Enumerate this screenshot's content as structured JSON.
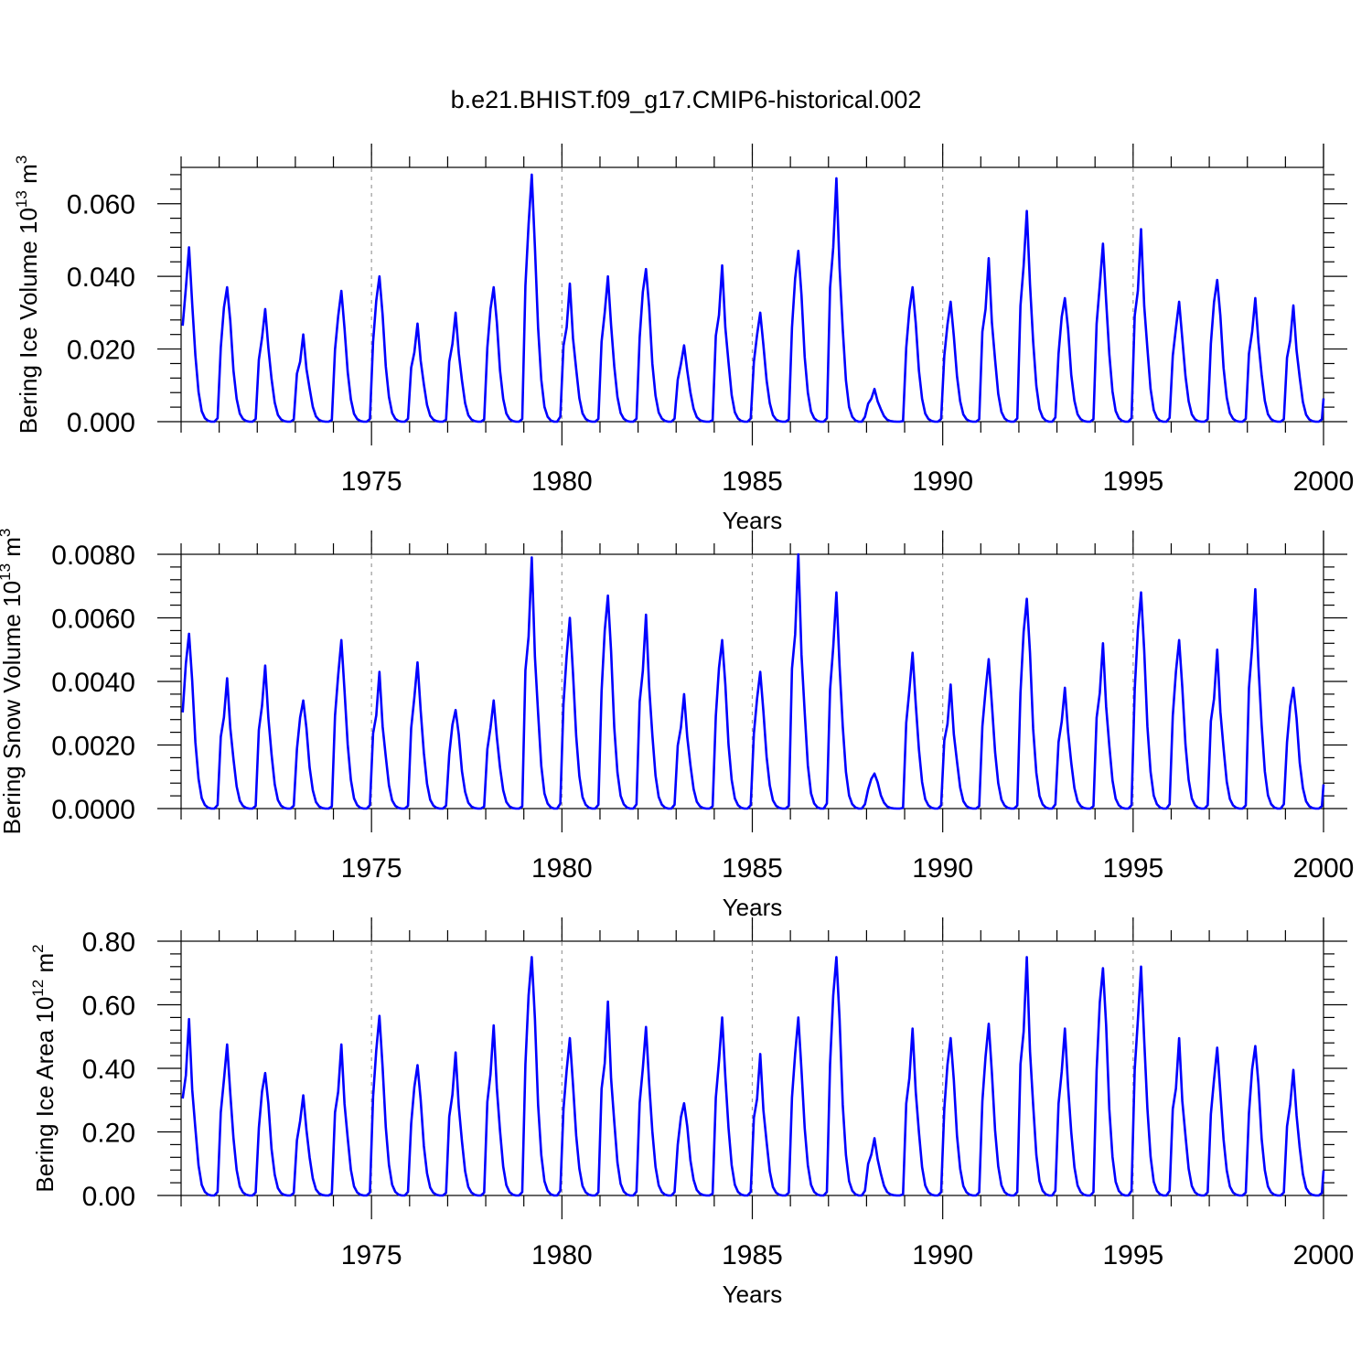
{
  "chart_data": {
    "type": "line",
    "title": "b.e21.BHIST.f09_g17.CMIP6-historical.002",
    "x_start": "1970-01",
    "x_step": "monthly",
    "xlim": [
      1970,
      2000
    ],
    "xticks": [
      1975,
      1980,
      1985,
      1990,
      1995,
      2000
    ],
    "xtick_labels": [
      "1975",
      "1980",
      "1985",
      "1990",
      "1995",
      "2000"
    ],
    "xlabel": "Years",
    "grid": "dashed vertical lines at major x ticks",
    "colors": {
      "series": "#0000ff",
      "grid": "#9a9a9a"
    },
    "panels": [
      {
        "ylabel": "Bering Ice Volume 10",
        "ylabel_sup": "13",
        "ylabel_unit": " m",
        "ylabel_unit_sup": "3",
        "ylim": [
          0,
          0.07
        ],
        "yticks": [
          0,
          0.02,
          0.04,
          0.06
        ],
        "ytick_labels": [
          "0.000",
          "0.020",
          "0.040",
          "0.060"
        ],
        "series": [
          {
            "peaks": [
              0.048,
              0.037,
              0.031,
              0.024,
              0.036,
              0.04,
              0.027,
              0.03,
              0.037,
              0.068,
              0.038,
              0.04,
              0.042,
              0.021,
              0.043,
              0.03,
              0.047,
              0.067,
              0.009,
              0.037,
              0.033,
              0.045,
              0.058,
              0.034,
              0.049,
              0.053,
              0.033,
              0.039,
              0.034,
              0.032
            ]
          }
        ]
      },
      {
        "ylabel": "Bering Snow Volume 10",
        "ylabel_sup": "13",
        "ylabel_unit": " m",
        "ylabel_unit_sup": "3",
        "ylim": [
          0,
          0.008
        ],
        "yticks": [
          0,
          0.002,
          0.004,
          0.006,
          0.008
        ],
        "ytick_labels": [
          "0.0000",
          "0.0020",
          "0.0040",
          "0.0060",
          "0.0080"
        ],
        "series": [
          {
            "peaks": [
              0.0055,
              0.0041,
              0.0045,
              0.0034,
              0.0053,
              0.0043,
              0.0046,
              0.0031,
              0.0034,
              0.0079,
              0.006,
              0.0067,
              0.0061,
              0.0036,
              0.0053,
              0.0043,
              0.008,
              0.0068,
              0.0011,
              0.0049,
              0.0039,
              0.0047,
              0.0066,
              0.0038,
              0.0052,
              0.0068,
              0.0053,
              0.005,
              0.0069,
              0.0038
            ]
          }
        ]
      },
      {
        "ylabel": "Bering Ice Area 10",
        "ylabel_sup": "12",
        "ylabel_unit": " m",
        "ylabel_unit_sup": "2",
        "ylim": [
          0,
          0.8
        ],
        "yticks": [
          0,
          0.2,
          0.4,
          0.6,
          0.8
        ],
        "ytick_labels": [
          "0.00",
          "0.20",
          "0.40",
          "0.60",
          "0.80"
        ],
        "series": [
          {
            "peaks": [
              0.555,
              0.475,
              0.385,
              0.315,
              0.475,
              0.565,
              0.41,
              0.45,
              0.535,
              0.75,
              0.495,
              0.61,
              0.53,
              0.29,
              0.56,
              0.445,
              0.56,
              0.75,
              0.18,
              0.525,
              0.495,
              0.54,
              0.75,
              0.525,
              0.715,
              0.72,
              0.495,
              0.465,
              0.47,
              0.395
            ]
          }
        ]
      }
    ]
  }
}
